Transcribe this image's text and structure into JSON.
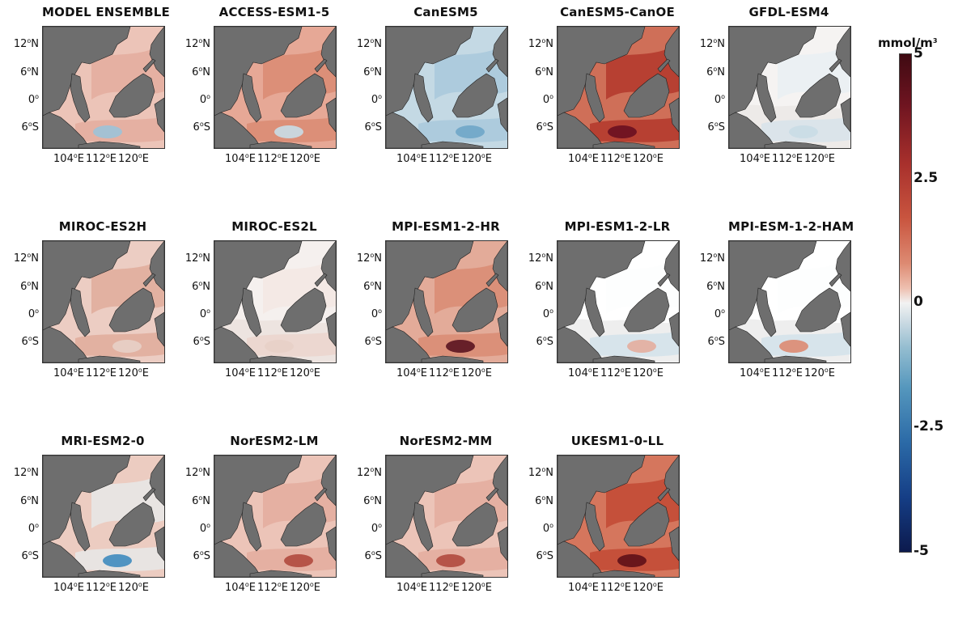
{
  "panels": [
    {
      "title": "MODEL ENSEMBLE",
      "style": "pink",
      "colors": [
        "#ecc4b8",
        "#e4ad9e",
        "#9cc3d8"
      ]
    },
    {
      "title": "ACCESS-ESM1-5",
      "style": "salmon",
      "colors": [
        "#e6a896",
        "#d98b73",
        "#c8dde7"
      ]
    },
    {
      "title": "CanESM5",
      "style": "blue",
      "colors": [
        "#c4d9e4",
        "#a9c8dc",
        "#6fa6c8"
      ]
    },
    {
      "title": "CanESM5-CanOE",
      "style": "red",
      "colors": [
        "#cf6f58",
        "#b3382c",
        "#6a1020"
      ]
    },
    {
      "title": "GFDL-ESM4",
      "style": "pale",
      "colors": [
        "#edeae8",
        "#d7e3ea",
        "#c9dbe5"
      ]
    },
    {
      "title": "MIROC-ES2H",
      "style": "pink",
      "colors": [
        "#eccdc3",
        "#e1ab9b",
        "#e8d0c7"
      ]
    },
    {
      "title": "MIROC-ES2L",
      "style": "pale",
      "colors": [
        "#ede4e0",
        "#ebd5cd",
        "#e8d0c7"
      ]
    },
    {
      "title": "MPI-ESM1-2-HR",
      "style": "salmon",
      "colors": [
        "#e3ab99",
        "#d98b73",
        "#5a1420"
      ]
    },
    {
      "title": "MPI-ESM1-2-LR",
      "style": "white",
      "colors": [
        "#eeeeee",
        "#d2e2ea",
        "#e4ad9e"
      ]
    },
    {
      "title": "MPI-ESM-1-2-HAM",
      "style": "white",
      "colors": [
        "#eeeeee",
        "#d2e2ea",
        "#dd8a72"
      ]
    },
    {
      "title": "MRI-ESM2-0",
      "style": "pink",
      "colors": [
        "#ecccc1",
        "#e8e8e8",
        "#3f8bbf"
      ]
    },
    {
      "title": "NorESM2-LM",
      "style": "pink",
      "colors": [
        "#ecc4b8",
        "#e4ad9e",
        "#b04a3e"
      ]
    },
    {
      "title": "NorESM2-MM",
      "style": "pink",
      "colors": [
        "#ecc4b8",
        "#e4ad9e",
        "#b04a3e"
      ]
    },
    {
      "title": "UKESM1-0-LL",
      "style": "red",
      "colors": [
        "#d5765d",
        "#c24a34",
        "#5e1018"
      ]
    }
  ],
  "axes": {
    "y_ticks": [
      {
        "num": "12",
        "sup": "o",
        "hem": "N"
      },
      {
        "num": "6",
        "sup": "o",
        "hem": "N"
      },
      {
        "num": "0",
        "sup": "o",
        "hem": ""
      },
      {
        "num": "6",
        "sup": "o",
        "hem": "S"
      }
    ],
    "x_ticks": [
      {
        "num": "104",
        "sup": "o",
        "hem": "E"
      },
      {
        "num": "112",
        "sup": "o",
        "hem": "E"
      },
      {
        "num": "120",
        "sup": "o",
        "hem": "E"
      }
    ]
  },
  "colorbar": {
    "unit": "mmol/m",
    "unit_sup": "3",
    "ticks": [
      "5",
      "2.5",
      "0",
      "-2.5",
      "-5"
    ],
    "colors": [
      "#3f0a12",
      "#b3382c",
      "#f2f2f2",
      "#2b6aa7",
      "#0c1a4d"
    ]
  },
  "land_color": "#6e6e6e"
}
